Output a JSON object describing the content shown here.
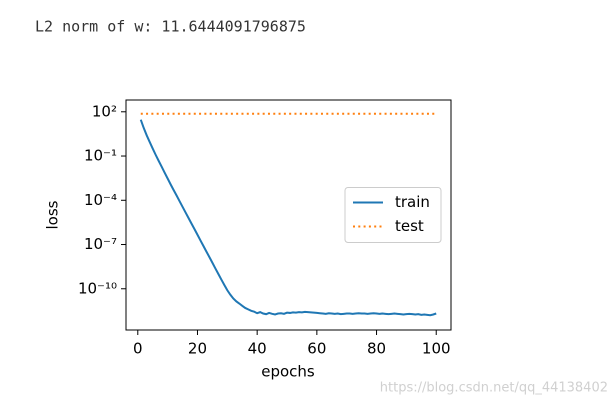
{
  "output_text": "L2 norm of w: 11.6444091796875",
  "watermark": "https://blog.csdn.net/qq_44138402",
  "chart_data": {
    "type": "line",
    "xlabel": "epochs",
    "ylabel": "loss",
    "yscale": "log",
    "legend": "center right",
    "xlim": [
      -3.95,
      104.95
    ],
    "xticks": [
      0,
      20,
      40,
      60,
      80,
      100
    ],
    "ylim": [
      1.6e-13,
      630
    ],
    "yticks": [
      {
        "value": 100,
        "label": "10²"
      },
      {
        "value": 0.1,
        "label": "10⁻¹"
      },
      {
        "value": 0.0001,
        "label": "10⁻⁴"
      },
      {
        "value": 1e-07,
        "label": "10⁻⁷"
      },
      {
        "value": 1e-10,
        "label": "10⁻¹⁰"
      }
    ],
    "x": [
      1,
      2,
      3,
      4,
      5,
      6,
      7,
      8,
      9,
      10,
      11,
      12,
      13,
      14,
      15,
      16,
      17,
      18,
      19,
      20,
      21,
      22,
      23,
      24,
      25,
      26,
      27,
      28,
      29,
      30,
      31,
      32,
      33,
      34,
      35,
      36,
      37,
      38,
      39,
      40,
      41,
      42,
      43,
      44,
      45,
      46,
      47,
      48,
      49,
      50,
      51,
      52,
      53,
      54,
      55,
      56,
      57,
      58,
      59,
      60,
      61,
      62,
      63,
      64,
      65,
      66,
      67,
      68,
      69,
      70,
      71,
      72,
      73,
      74,
      75,
      76,
      77,
      78,
      79,
      80,
      81,
      82,
      83,
      84,
      85,
      86,
      87,
      88,
      89,
      90,
      91,
      92,
      93,
      94,
      95,
      96,
      97,
      98,
      99,
      100
    ],
    "series": [
      {
        "name": "train",
        "color": "#1f77b4",
        "style": "solid",
        "values": [
          29,
          7.9,
          2.5,
          0.89,
          0.32,
          0.12,
          0.047,
          0.019,
          0.0074,
          0.003,
          0.0012,
          0.0005,
          0.00021,
          8.7e-05,
          3.6e-05,
          1.5e-05,
          6.3e-06,
          2.6e-06,
          1.1e-06,
          4.6e-07,
          1.9e-07,
          7.9e-08,
          3.3e-08,
          1.4e-08,
          5.8e-09,
          2.4e-09,
          1e-09,
          4.2e-10,
          1.8e-10,
          7.9e-11,
          4e-11,
          2.2e-11,
          1.4e-11,
          1e-11,
          7e-12,
          5e-12,
          4e-12,
          3.2e-12,
          2.8e-12,
          2.2e-12,
          2.6e-12,
          2.1e-12,
          1.9e-12,
          2.3e-12,
          2e-12,
          1.8e-12,
          2.1e-12,
          2.2e-12,
          2e-12,
          2.4e-12,
          2.3e-12,
          2.5e-12,
          2.4e-12,
          2.6e-12,
          2.5e-12,
          2.7e-12,
          2.6e-12,
          2.5e-12,
          2.4e-12,
          2.3e-12,
          2.2e-12,
          2.1e-12,
          2e-12,
          2.2e-12,
          2.1e-12,
          2e-12,
          2.1e-12,
          1.9e-12,
          2e-12,
          2.1e-12,
          2.1e-12,
          2e-12,
          2.1e-12,
          2.2e-12,
          2.1e-12,
          2.1e-12,
          2e-12,
          2.1e-12,
          2.2e-12,
          2.1e-12,
          2e-12,
          2.1e-12,
          2e-12,
          1.9e-12,
          2e-12,
          2.1e-12,
          2e-12,
          1.9e-12,
          1.8e-12,
          1.9e-12,
          2e-12,
          1.9e-12,
          1.8e-12,
          1.9e-12,
          1.7e-12,
          1.8e-12,
          1.7e-12,
          1.6e-12,
          1.8e-12,
          2.1e-12
        ]
      },
      {
        "name": "test",
        "color": "#ff7f0e",
        "style": "dotted",
        "values": [
          73,
          73,
          73,
          73,
          73,
          73,
          73,
          73,
          73,
          73,
          73,
          73,
          73,
          73,
          73,
          73,
          73,
          73,
          73,
          73,
          73,
          73,
          73,
          73,
          73,
          73,
          73,
          73,
          73,
          73,
          73,
          73,
          73,
          73,
          73,
          73,
          73,
          73,
          73,
          73,
          73,
          73,
          73,
          73,
          73,
          73,
          73,
          73,
          73,
          73,
          73,
          73,
          73,
          73,
          73,
          73,
          73,
          73,
          73,
          73,
          73,
          73,
          73,
          73,
          73,
          73,
          73,
          73,
          73,
          73,
          73,
          73,
          73,
          73,
          73,
          73,
          73,
          73,
          73,
          73,
          73,
          73,
          73,
          73,
          73,
          73,
          73,
          73,
          73,
          73,
          73,
          73,
          73,
          73,
          73,
          73,
          73,
          73,
          73,
          73
        ]
      }
    ]
  }
}
